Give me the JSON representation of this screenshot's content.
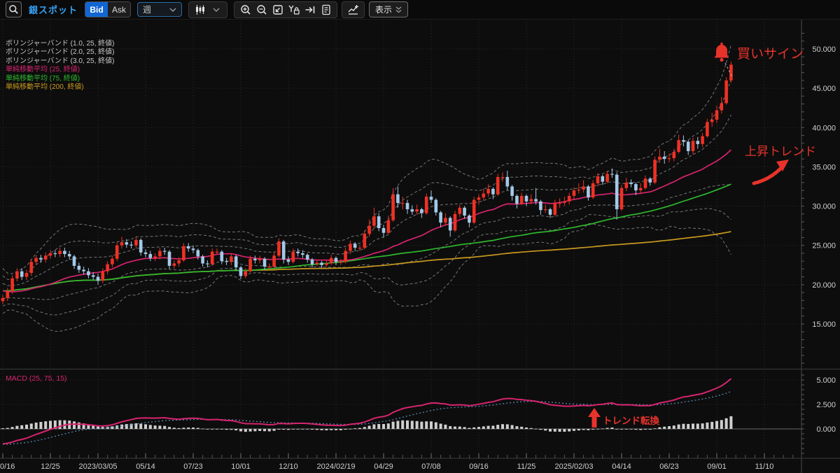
{
  "toolbar": {
    "symbol": "銀スポット",
    "bid_label": "Bid",
    "ask_label": "Ask",
    "period_value": "週",
    "display_label": "表示",
    "icons": {
      "search": "magnifier",
      "chart_type": "candlestick-bars-with-chevron",
      "zoom_in": "magnifier-plus",
      "zoom_out": "magnifier-minus",
      "fit_screen": "square-diagonal-arrow",
      "y_axis_lock": "Y-with-padlock",
      "go_to_latest": "arrow-to-bar",
      "order_list": "document-lines",
      "add_indicator": "line-chart-plus",
      "display_menu": "double-chevron-down"
    }
  },
  "legend": {
    "items": [
      {
        "label": "ボリンジャーバンド (1.0, 25, 終値)",
        "color": "#c8c8c8"
      },
      {
        "label": "ボリンジャーバンド (2.0, 25, 終値)",
        "color": "#c8c8c8"
      },
      {
        "label": "ボリンジャーバンド (3.0, 25, 終値)",
        "color": "#c8c8c8"
      },
      {
        "label": "単純移動平均 (25, 終値)",
        "color": "#d6246e"
      },
      {
        "label": "単純移動平均 (75, 終値)",
        "color": "#2eb82e"
      },
      {
        "label": "単純移動平均 (200, 終値)",
        "color": "#c9991e"
      }
    ]
  },
  "macd_legend": "MACD (25, 75, 15)",
  "annotations": {
    "buy_signal": "買いサイン",
    "uptrend": "上昇トレンド",
    "trend_reversal": "トレンド転換",
    "color": "#e8332b"
  },
  "price_axis": {
    "labels": [
      "50.000",
      "45.000",
      "40.000",
      "35.000",
      "30.000",
      "25.000",
      "20.000",
      "15.000"
    ],
    "values": [
      50,
      45,
      40,
      35,
      30,
      25,
      20,
      15
    ]
  },
  "macd_axis": {
    "labels": [
      "5.000",
      "2.500",
      "0.000"
    ],
    "values": [
      5,
      2.5,
      0
    ]
  },
  "date_axis": {
    "labels": [
      "0/16",
      "12/25",
      "2023/03/05",
      "05/14",
      "07/23",
      "10/01",
      "12/10",
      "2024/02/19",
      "04/29",
      "07/08",
      "09/16",
      "11/25",
      "2025/02/03",
      "04/14",
      "06/23",
      "09/01",
      "11/10"
    ]
  },
  "colors": {
    "candle_up": "#ef3124",
    "candle_down": "#a3c9e8",
    "sma25": "#d6246e",
    "sma75": "#2eb82e",
    "sma200": "#c9991e",
    "bollinger": "#9a9a9a",
    "macd_line": "#d6246e",
    "macd_signal": "#5b87b0",
    "histogram": "#cfcfcf",
    "grid": "#2b2b2b",
    "axis_text": "#cfcfcf",
    "axis_line": "#4a4a4a",
    "separator": "#3a3a3a",
    "annotation": "#e8332b"
  },
  "chart_data": {
    "type": "candlestick",
    "symbol": "銀スポット",
    "timeframe": "週",
    "price_axis_range": [
      13.8,
      52.5
    ],
    "macd_axis_range": [
      -3.0,
      5.6
    ],
    "overlays": [
      {
        "name": "bollinger",
        "period": 25,
        "sigmas": [
          1.0,
          2.0,
          3.0
        ]
      },
      {
        "name": "sma",
        "periods": [
          25,
          75,
          200
        ]
      },
      {
        "name": "macd",
        "fast": 25,
        "slow": 75,
        "signal": 15
      }
    ],
    "prior_closes": [
      21.9,
      21.0,
      20.9,
      19.1,
      18.6,
      18.9,
      19.8,
      20.2,
      20.0,
      19.1,
      18.8,
      18.0,
      17.9,
      18.8,
      19.4,
      18.9,
      19.0,
      18.4,
      19.2,
      19.1,
      18.3,
      18.9,
      19.5,
      18.2
    ],
    "macd_seeds": {
      "fast": 20.0,
      "slow": 22.0,
      "signal": -1.5
    },
    "candles_ohlc": [
      [
        17.9,
        18.7,
        17.5,
        18.3
      ],
      [
        18.3,
        19.6,
        17.9,
        19.2
      ],
      [
        19.2,
        21.2,
        18.8,
        20.8
      ],
      [
        20.8,
        22.1,
        20.4,
        21.7
      ],
      [
        21.7,
        22.1,
        20.6,
        21.0
      ],
      [
        21.0,
        21.9,
        20.6,
        21.5
      ],
      [
        21.5,
        23.3,
        21.1,
        22.9
      ],
      [
        22.9,
        23.8,
        22.5,
        23.4
      ],
      [
        23.4,
        23.8,
        22.8,
        23.2
      ],
      [
        23.2,
        24.1,
        22.8,
        23.7
      ],
      [
        23.7,
        24.4,
        23.3,
        24.0
      ],
      [
        24.0,
        24.4,
        23.5,
        23.9
      ],
      [
        23.9,
        24.7,
        23.5,
        24.3
      ],
      [
        24.3,
        24.7,
        23.5,
        23.9
      ],
      [
        23.9,
        24.3,
        23.2,
        23.6
      ],
      [
        23.6,
        23.8,
        22.0,
        22.4
      ],
      [
        22.4,
        22.8,
        21.5,
        21.9
      ],
      [
        21.9,
        22.3,
        21.3,
        21.7
      ],
      [
        21.7,
        22.1,
        20.8,
        21.2
      ],
      [
        21.2,
        21.6,
        20.6,
        21.0
      ],
      [
        21.0,
        21.4,
        20.0,
        20.5
      ],
      [
        20.5,
        22.1,
        20.2,
        21.7
      ],
      [
        21.7,
        23.0,
        21.3,
        22.6
      ],
      [
        22.6,
        23.7,
        22.2,
        23.3
      ],
      [
        23.3,
        25.4,
        23.0,
        25.0
      ],
      [
        25.0,
        26.1,
        24.6,
        25.4
      ],
      [
        25.4,
        25.8,
        24.7,
        25.1
      ],
      [
        25.1,
        25.5,
        24.6,
        25.0
      ],
      [
        25.0,
        26.1,
        24.6,
        25.7
      ],
      [
        25.7,
        25.9,
        23.7,
        24.1
      ],
      [
        24.1,
        24.5,
        23.5,
        23.9
      ],
      [
        23.9,
        24.3,
        23.0,
        23.4
      ],
      [
        23.4,
        24.0,
        23.0,
        23.6
      ],
      [
        23.6,
        24.7,
        23.2,
        24.3
      ],
      [
        24.3,
        24.7,
        23.8,
        24.2
      ],
      [
        24.2,
        24.4,
        22.0,
        22.4
      ],
      [
        22.4,
        23.1,
        22.0,
        22.7
      ],
      [
        22.7,
        23.5,
        22.3,
        23.1
      ],
      [
        23.1,
        25.3,
        22.9,
        24.9
      ],
      [
        24.9,
        25.3,
        24.2,
        24.6
      ],
      [
        24.6,
        25.0,
        24.0,
        24.4
      ],
      [
        24.4,
        24.6,
        23.2,
        23.6
      ],
      [
        23.6,
        23.8,
        22.3,
        22.7
      ],
      [
        22.7,
        23.1,
        22.2,
        22.6
      ],
      [
        22.6,
        24.6,
        22.4,
        24.2
      ],
      [
        24.2,
        24.6,
        23.8,
        24.2
      ],
      [
        24.2,
        24.4,
        22.6,
        23.0
      ],
      [
        23.0,
        23.4,
        22.5,
        22.9
      ],
      [
        22.9,
        24.0,
        22.5,
        23.6
      ],
      [
        23.6,
        23.8,
        21.8,
        22.2
      ],
      [
        22.2,
        22.4,
        20.7,
        21.1
      ],
      [
        21.1,
        22.1,
        20.8,
        21.7
      ],
      [
        21.7,
        23.7,
        21.5,
        23.3
      ],
      [
        23.3,
        23.7,
        22.7,
        23.1
      ],
      [
        23.1,
        23.7,
        22.7,
        23.3
      ],
      [
        23.3,
        23.5,
        21.9,
        22.3
      ],
      [
        22.3,
        22.7,
        21.9,
        22.3
      ],
      [
        22.3,
        24.1,
        22.1,
        23.7
      ],
      [
        23.7,
        25.9,
        23.5,
        25.5
      ],
      [
        25.5,
        25.7,
        22.7,
        23.2
      ],
      [
        23.2,
        23.6,
        22.5,
        22.9
      ],
      [
        22.9,
        24.6,
        22.7,
        24.2
      ],
      [
        24.2,
        24.6,
        23.6,
        24.0
      ],
      [
        24.0,
        24.4,
        23.4,
        23.8
      ],
      [
        23.8,
        24.0,
        22.8,
        23.2
      ],
      [
        23.2,
        23.4,
        22.2,
        22.6
      ],
      [
        22.6,
        23.2,
        22.4,
        22.8
      ],
      [
        22.8,
        23.0,
        22.1,
        22.5
      ],
      [
        22.5,
        23.1,
        22.3,
        22.7
      ],
      [
        22.7,
        23.8,
        22.5,
        23.4
      ],
      [
        23.4,
        23.6,
        22.5,
        22.9
      ],
      [
        22.9,
        23.3,
        22.5,
        22.9
      ],
      [
        22.9,
        24.7,
        22.7,
        24.3
      ],
      [
        24.3,
        25.6,
        23.9,
        25.2
      ],
      [
        25.2,
        25.4,
        24.3,
        24.7
      ],
      [
        24.7,
        25.1,
        24.3,
        24.7
      ],
      [
        24.7,
        26.9,
        24.5,
        26.5
      ],
      [
        26.5,
        28.3,
        26.1,
        27.5
      ],
      [
        27.5,
        29.8,
        27.1,
        28.7
      ],
      [
        28.7,
        29.1,
        26.8,
        27.2
      ],
      [
        27.2,
        27.6,
        26.0,
        26.6
      ],
      [
        26.6,
        28.8,
        26.4,
        28.2
      ],
      [
        28.2,
        32.3,
        28.0,
        31.5
      ],
      [
        31.5,
        32.5,
        29.8,
        30.4
      ],
      [
        30.4,
        31.2,
        29.6,
        30.4
      ],
      [
        30.4,
        30.8,
        29.0,
        29.6
      ],
      [
        29.6,
        30.1,
        28.9,
        29.3
      ],
      [
        29.3,
        30.2,
        28.9,
        29.6
      ],
      [
        29.6,
        29.8,
        28.5,
        29.1
      ],
      [
        29.1,
        31.6,
        28.9,
        31.2
      ],
      [
        31.2,
        32.0,
        30.4,
        30.8
      ],
      [
        30.8,
        31.0,
        28.8,
        29.2
      ],
      [
        29.2,
        29.4,
        27.3,
        27.9
      ],
      [
        27.9,
        29.1,
        27.5,
        28.5
      ],
      [
        28.5,
        28.7,
        26.1,
        26.9
      ],
      [
        26.9,
        29.4,
        26.7,
        29.0
      ],
      [
        29.0,
        30.2,
        28.6,
        29.8
      ],
      [
        29.8,
        30.0,
        28.4,
        28.8
      ],
      [
        28.8,
        29.0,
        27.3,
        27.9
      ],
      [
        27.9,
        31.2,
        27.7,
        30.8
      ],
      [
        30.8,
        31.5,
        30.2,
        31.1
      ],
      [
        31.1,
        32.2,
        30.7,
        31.6
      ],
      [
        31.6,
        32.8,
        31.2,
        32.2
      ],
      [
        32.2,
        32.4,
        30.9,
        31.5
      ],
      [
        31.5,
        34.1,
        31.3,
        33.7
      ],
      [
        33.7,
        34.3,
        33.1,
        33.7
      ],
      [
        33.7,
        34.5,
        32.0,
        32.5
      ],
      [
        32.5,
        32.7,
        30.7,
        31.3
      ],
      [
        31.3,
        31.5,
        29.7,
        30.3
      ],
      [
        30.3,
        31.7,
        30.1,
        31.3
      ],
      [
        31.3,
        31.5,
        30.0,
        30.6
      ],
      [
        30.6,
        31.5,
        30.2,
        30.9
      ],
      [
        30.9,
        32.3,
        30.2,
        30.6
      ],
      [
        30.6,
        30.8,
        28.9,
        29.5
      ],
      [
        29.5,
        30.2,
        29.1,
        29.6
      ],
      [
        29.6,
        29.8,
        28.5,
        28.9
      ],
      [
        28.9,
        30.8,
        28.7,
        30.4
      ],
      [
        30.4,
        31.0,
        29.8,
        30.4
      ],
      [
        30.4,
        31.2,
        30.0,
        30.6
      ],
      [
        30.6,
        31.7,
        30.2,
        31.3
      ],
      [
        31.3,
        32.4,
        30.9,
        32.0
      ],
      [
        32.0,
        32.9,
        31.6,
        32.1
      ],
      [
        32.1,
        33.3,
        31.7,
        32.5
      ],
      [
        32.5,
        32.7,
        30.7,
        31.1
      ],
      [
        31.1,
        33.3,
        30.9,
        32.9
      ],
      [
        32.9,
        34.2,
        32.5,
        33.8
      ],
      [
        33.8,
        34.0,
        32.7,
        33.1
      ],
      [
        33.1,
        34.5,
        32.9,
        34.1
      ],
      [
        34.1,
        34.8,
        33.6,
        34.0
      ],
      [
        34.0,
        34.3,
        28.3,
        29.6
      ],
      [
        29.6,
        32.7,
        29.4,
        32.3
      ],
      [
        32.3,
        33.6,
        31.9,
        33.0
      ],
      [
        33.0,
        33.4,
        32.4,
        32.8
      ],
      [
        32.8,
        33.0,
        31.4,
        32.0
      ],
      [
        32.0,
        32.9,
        31.6,
        32.3
      ],
      [
        32.3,
        33.9,
        32.1,
        33.5
      ],
      [
        33.5,
        33.7,
        32.6,
        33.0
      ],
      [
        33.0,
        36.3,
        32.8,
        35.9
      ],
      [
        35.9,
        37.3,
        35.5,
        36.3
      ],
      [
        36.3,
        37.0,
        35.4,
        36.0
      ],
      [
        36.0,
        36.7,
        35.6,
        36.1
      ],
      [
        36.1,
        37.3,
        35.7,
        36.9
      ],
      [
        36.9,
        39.1,
        36.7,
        38.4
      ],
      [
        38.4,
        39.0,
        37.6,
        38.2
      ],
      [
        38.2,
        38.4,
        36.5,
        37.0
      ],
      [
        37.0,
        38.7,
        36.6,
        38.3
      ],
      [
        38.3,
        38.8,
        37.3,
        37.9
      ],
      [
        37.9,
        39.3,
        37.5,
        38.9
      ],
      [
        38.9,
        41.1,
        38.7,
        40.7
      ],
      [
        40.7,
        41.9,
        40.1,
        41.0
      ],
      [
        41.0,
        42.8,
        40.6,
        42.2
      ],
      [
        42.2,
        43.9,
        41.8,
        43.1
      ],
      [
        43.1,
        46.4,
        42.9,
        46.0
      ],
      [
        46.0,
        48.4,
        45.7,
        48.0
      ]
    ]
  }
}
